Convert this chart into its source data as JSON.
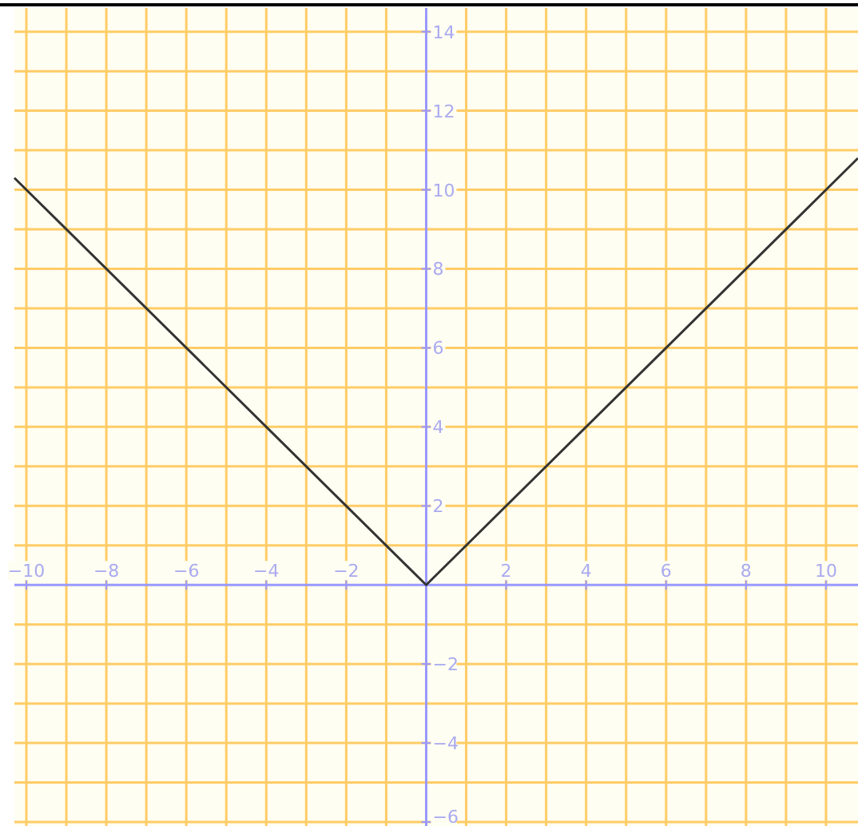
{
  "chart_data": {
    "type": "line",
    "x": [
      -10.3,
      0,
      10.8
    ],
    "series": [
      {
        "color": "#333333",
        "values": [
          10.3,
          0,
          10.8
        ]
      }
    ],
    "xlim": [
      -10.3,
      10.8
    ],
    "ylim": [
      -6.1,
      14.6
    ],
    "xticks": [
      {
        "value": -10,
        "label": "−10"
      },
      {
        "value": -9,
        "label": null
      },
      {
        "value": -8,
        "label": "−8"
      },
      {
        "value": -7,
        "label": null
      },
      {
        "value": -6,
        "label": "−6"
      },
      {
        "value": -5,
        "label": null
      },
      {
        "value": -4,
        "label": "−4"
      },
      {
        "value": -3,
        "label": null
      },
      {
        "value": -2,
        "label": "−2"
      },
      {
        "value": -1,
        "label": null
      },
      {
        "value": 1,
        "label": null
      },
      2,
      {
        "value": 3,
        "label": null
      },
      4,
      {
        "value": 5,
        "label": null
      },
      6,
      {
        "value": 7,
        "label": null
      },
      8,
      {
        "value": 9,
        "label": null
      },
      10
    ],
    "yticks": [
      {
        "value": -6,
        "label": "−6"
      },
      {
        "value": -5,
        "label": null
      },
      {
        "value": -4,
        "label": "−4"
      },
      {
        "value": -3,
        "label": null
      },
      {
        "value": -2,
        "label": "−2"
      },
      {
        "value": -1,
        "label": null
      },
      {
        "value": 1,
        "label": null
      },
      2,
      {
        "value": 3,
        "label": null
      },
      4,
      {
        "value": 5,
        "label": null
      },
      6,
      {
        "value": 7,
        "label": null
      },
      8,
      {
        "value": 9,
        "label": null
      },
      10,
      {
        "value": 11,
        "label": null
      },
      12,
      {
        "value": 13,
        "label": null
      },
      14
    ],
    "grid": true,
    "marker": "none",
    "line_style": "solid"
  }
}
